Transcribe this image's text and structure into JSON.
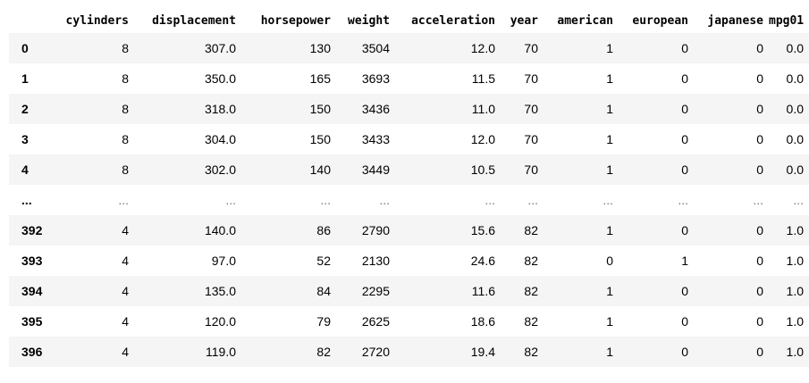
{
  "table": {
    "columns": [
      "cylinders",
      "displacement",
      "horsepower",
      "weight",
      "acceleration",
      "year",
      "american",
      "european",
      "japanese",
      "mpg01"
    ],
    "rows": [
      {
        "index": "0",
        "cells": [
          "8",
          "307.0",
          "130",
          "3504",
          "12.0",
          "70",
          "1",
          "0",
          "0",
          "0.0"
        ]
      },
      {
        "index": "1",
        "cells": [
          "8",
          "350.0",
          "165",
          "3693",
          "11.5",
          "70",
          "1",
          "0",
          "0",
          "0.0"
        ]
      },
      {
        "index": "2",
        "cells": [
          "8",
          "318.0",
          "150",
          "3436",
          "11.0",
          "70",
          "1",
          "0",
          "0",
          "0.0"
        ]
      },
      {
        "index": "3",
        "cells": [
          "8",
          "304.0",
          "150",
          "3433",
          "12.0",
          "70",
          "1",
          "0",
          "0",
          "0.0"
        ]
      },
      {
        "index": "4",
        "cells": [
          "8",
          "302.0",
          "140",
          "3449",
          "10.5",
          "70",
          "1",
          "0",
          "0",
          "0.0"
        ]
      },
      {
        "index": "...",
        "cells": [
          "...",
          "...",
          "...",
          "...",
          "...",
          "...",
          "...",
          "...",
          "...",
          "..."
        ]
      },
      {
        "index": "392",
        "cells": [
          "4",
          "140.0",
          "86",
          "2790",
          "15.6",
          "82",
          "1",
          "0",
          "0",
          "1.0"
        ]
      },
      {
        "index": "393",
        "cells": [
          "4",
          "97.0",
          "52",
          "2130",
          "24.6",
          "82",
          "0",
          "1",
          "0",
          "1.0"
        ]
      },
      {
        "index": "394",
        "cells": [
          "4",
          "135.0",
          "84",
          "2295",
          "11.6",
          "82",
          "1",
          "0",
          "0",
          "1.0"
        ]
      },
      {
        "index": "395",
        "cells": [
          "4",
          "120.0",
          "79",
          "2625",
          "18.6",
          "82",
          "1",
          "0",
          "0",
          "1.0"
        ]
      },
      {
        "index": "396",
        "cells": [
          "4",
          "119.0",
          "82",
          "2720",
          "19.4",
          "82",
          "1",
          "0",
          "0",
          "1.0"
        ]
      }
    ]
  }
}
